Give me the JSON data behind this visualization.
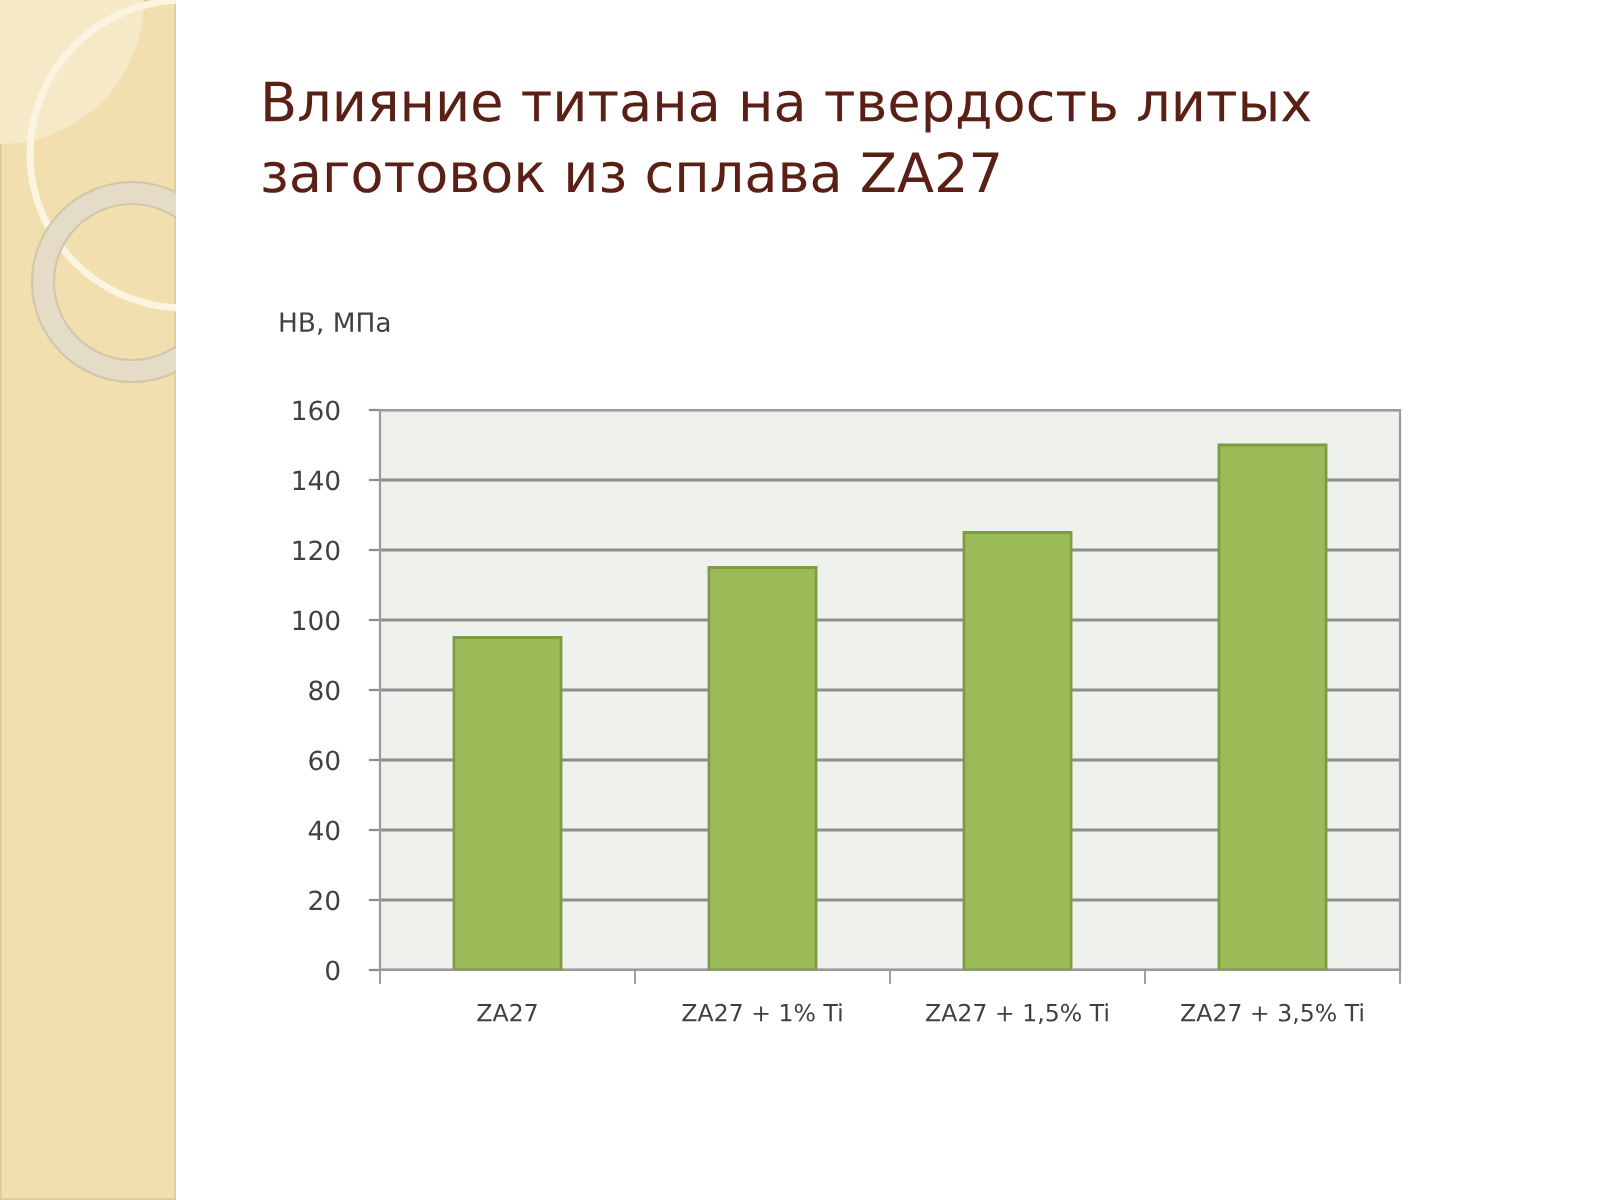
{
  "chart_data": {
    "type": "bar",
    "title": "Влияние титана на твердость литых\nзаготовок из сплава ZA27",
    "ylabel": "НВ, МПа",
    "categories": [
      "ZA27",
      "ZA27 + 1% Ti",
      "ZA27 + 1,5% Ti",
      "ZA27 + 3,5% Ti"
    ],
    "values": [
      95,
      115,
      125,
      150
    ],
    "color": "#9bbb59",
    "ylim": [
      0,
      160
    ],
    "yticks": [
      0,
      20,
      40,
      60,
      80,
      100,
      120,
      140,
      160
    ],
    "grid": "y"
  }
}
